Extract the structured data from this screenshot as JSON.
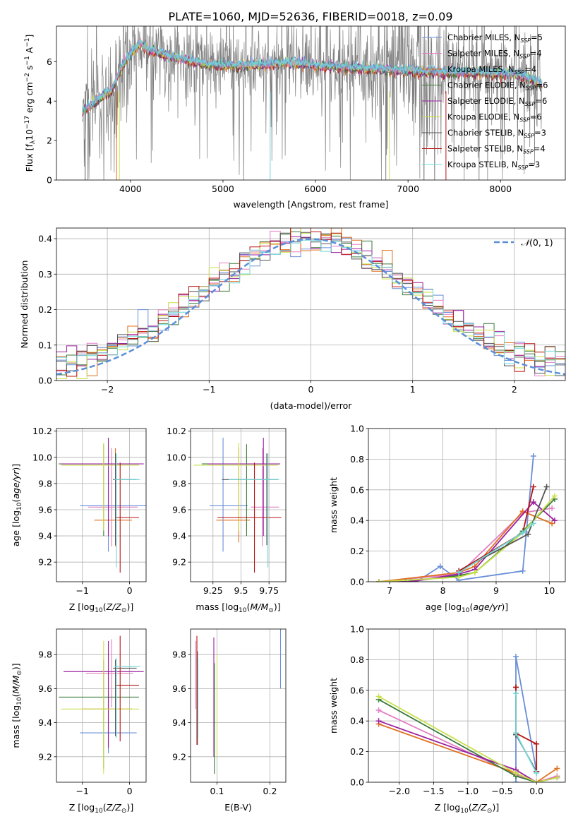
{
  "figure_title": "PLATE=1060, MJD=52636, FIBERID=0018, z=0.09",
  "colors": {
    "chabrier_miles": "#6a8fd8",
    "salpeter_miles": "#e37fc4",
    "kroupa_miles": "#e07020",
    "chabrier_elodie": "#3a7a3a",
    "salpeter_elodie": "#9a1fa0",
    "kroupa_elodie": "#c8e04a",
    "chabrier_stelib": "#555555",
    "salpeter_stelib": "#b81414",
    "kroupa_stelib": "#6fd8d8",
    "data_gray": "#808080",
    "gaussian": "#5b8fd8"
  },
  "chart_data": [
    {
      "id": "spectrum",
      "type": "line",
      "xlabel": "wavelength [Angstrom, rest frame]",
      "ylabel_main": "Flux [f",
      "ylabel_sub": "λ",
      "ylabel_rest": "10",
      "ylabel_exp": "−17",
      "ylabel_units": " erg cm",
      "ylabel_exp2": "−2",
      "ylabel_s": " s",
      "ylabel_exp3": "−1",
      "ylabel_a": " A",
      "ylabel_exp4": "−1",
      "ylabel_end": "]",
      "xlim": [
        3200,
        8700
      ],
      "ylim": [
        0,
        7.8
      ],
      "xticks": [
        4000,
        5000,
        6000,
        7000,
        8000
      ],
      "yticks": [
        0,
        2,
        4,
        6
      ],
      "legend": [
        {
          "prefix": "Chabrier MILES, N",
          "sub": "SSP",
          "suffix": "=5",
          "color": "chabrier_miles"
        },
        {
          "prefix": "Salpeter MILES, N",
          "sub": "SSP",
          "suffix": "=4",
          "color": "salpeter_miles"
        },
        {
          "prefix": "Kroupa MILES, N",
          "sub": "SSP",
          "suffix": "=4",
          "color": "kroupa_miles"
        },
        {
          "prefix": "Chabrier ELODIE, N",
          "sub": "SSP",
          "suffix": "=6",
          "color": "chabrier_elodie"
        },
        {
          "prefix": "Salpeter ELODIE, N",
          "sub": "SSP",
          "suffix": "=6",
          "color": "salpeter_elodie"
        },
        {
          "prefix": "Kroupa ELODIE, N",
          "sub": "SSP",
          "suffix": "=6",
          "color": "kroupa_elodie"
        },
        {
          "prefix": "Chabrier STELIB, N",
          "sub": "SSP",
          "suffix": "=3",
          "color": "chabrier_stelib"
        },
        {
          "prefix": "Salpeter STELIB, N",
          "sub": "SSP",
          "suffix": "=4",
          "color": "salpeter_stelib"
        },
        {
          "prefix": "Kroupa STELIB, N",
          "sub": "SSP",
          "suffix": "=3",
          "color": "kroupa_stelib"
        }
      ],
      "continuum": [
        [
          3480,
          3.5
        ],
        [
          3600,
          3.9
        ],
        [
          3800,
          4.6
        ],
        [
          3900,
          5.7
        ],
        [
          4000,
          6.4
        ],
        [
          4100,
          6.9
        ],
        [
          4200,
          6.6
        ],
        [
          4400,
          6.3
        ],
        [
          4600,
          6.1
        ],
        [
          4800,
          5.9
        ],
        [
          5000,
          5.8
        ],
        [
          5200,
          5.8
        ],
        [
          5400,
          5.85
        ],
        [
          5600,
          5.9
        ],
        [
          5800,
          5.95
        ],
        [
          6000,
          5.8
        ],
        [
          6200,
          5.75
        ],
        [
          6400,
          5.7
        ],
        [
          6600,
          5.65
        ],
        [
          6800,
          5.6
        ],
        [
          7000,
          5.55
        ],
        [
          7200,
          5.5
        ],
        [
          7400,
          5.45
        ],
        [
          7600,
          5.45
        ],
        [
          7800,
          5.45
        ],
        [
          8000,
          5.4
        ],
        [
          8200,
          5.35
        ],
        [
          8400,
          5.0
        ],
        [
          8450,
          4.8
        ]
      ]
    },
    {
      "id": "histogram",
      "type": "bar",
      "xlabel": "(data-model)/error",
      "ylabel": "Normed distribution",
      "xlim": [
        -2.5,
        2.5
      ],
      "ylim": [
        0,
        0.43
      ],
      "xticks": [
        -2,
        -1,
        0,
        1,
        2
      ],
      "yticks": [
        0.0,
        0.1,
        0.2,
        0.3,
        0.4
      ],
      "legend_label": "N(0, 1)",
      "legend_script": "𝒩",
      "legend_rest": "(0, 1)",
      "bin_width": 0.1
    },
    {
      "id": "age_vs_Z",
      "type": "scatter",
      "xlabel": "Z [log10(Z/Z⊙)]",
      "ylabel": "age [log10(age/yr)]",
      "xlim": [
        -1.55,
        0.35
      ],
      "ylim": [
        9.05,
        10.22
      ],
      "xticks": [
        -1,
        0
      ],
      "yticks": [
        9.2,
        9.4,
        9.6,
        9.8,
        10.0,
        10.2
      ],
      "points": [
        {
          "color": "chabrier_miles",
          "x": -0.45,
          "xerr": [
            0.6,
            0.8
          ],
          "y": 9.63,
          "yerr": [
            0.35,
            0.52
          ]
        },
        {
          "color": "salpeter_miles",
          "x": -0.38,
          "xerr": [
            0.5,
            0.55
          ],
          "y": 9.62,
          "yerr": [
            0.3,
            0.45
          ]
        },
        {
          "color": "kroupa_miles",
          "x": -0.3,
          "xerr": [
            0.45,
            0.35
          ],
          "y": 9.52,
          "yerr": [
            0.2,
            0.55
          ]
        },
        {
          "color": "chabrier_elodie",
          "x": -0.55,
          "xerr": [
            0.95,
            0.75
          ],
          "y": 9.95,
          "yerr": [
            0.55,
            0.15
          ]
        },
        {
          "color": "salpeter_elodie",
          "x": -0.45,
          "xerr": [
            1.0,
            0.75
          ],
          "y": 9.95,
          "yerr": [
            0.55,
            0.2
          ]
        },
        {
          "color": "kroupa_elodie",
          "x": -0.55,
          "xerr": [
            0.9,
            0.75
          ],
          "y": 9.94,
          "yerr": [
            0.5,
            0.17
          ]
        },
        {
          "color": "chabrier_stelib",
          "x": -0.3,
          "xerr": [
            0.05,
            0.45
          ],
          "y": 9.83,
          "yerr": [
            0.5,
            0.2
          ]
        },
        {
          "color": "salpeter_stelib",
          "x": -0.2,
          "xerr": [
            0.1,
            0.4
          ],
          "y": 9.54,
          "yerr": [
            0.42,
            0.42
          ]
        },
        {
          "color": "kroupa_stelib",
          "x": -0.28,
          "xerr": [
            0.04,
            0.5
          ],
          "y": 9.83,
          "yerr": [
            0.67,
            0.2
          ]
        }
      ]
    },
    {
      "id": "age_vs_mass",
      "type": "scatter",
      "xlabel": "mass [log10(M/M⊙)]",
      "ylabel": "",
      "xlim": [
        9.05,
        9.9
      ],
      "ylim": [
        9.05,
        10.22
      ],
      "xticks": [
        9.25,
        9.5,
        9.75
      ],
      "ytick_labels": [
        9.2,
        9.4,
        9.6,
        9.8,
        10.0,
        10.2
      ],
      "points": [
        {
          "color": "chabrier_miles",
          "x": 9.34,
          "xerr": [
            0.12,
            0.22
          ],
          "y": 9.63,
          "yerr": [
            0.35,
            0.52
          ]
        },
        {
          "color": "salpeter_miles",
          "x": 9.69,
          "xerr": [
            0.1,
            0.15
          ],
          "y": 9.62,
          "yerr": [
            0.3,
            0.45
          ]
        },
        {
          "color": "kroupa_miles",
          "x": 9.48,
          "xerr": [
            0.2,
            0.1
          ],
          "y": 9.52,
          "yerr": [
            0.17,
            0.55
          ]
        },
        {
          "color": "chabrier_elodie",
          "x": 9.55,
          "xerr": [
            0.4,
            0.3
          ],
          "y": 9.95,
          "yerr": [
            0.55,
            0.15
          ]
        },
        {
          "color": "salpeter_elodie",
          "x": 9.7,
          "xerr": [
            0.5,
            0.15
          ],
          "y": 9.95,
          "yerr": [
            0.55,
            0.2
          ]
        },
        {
          "color": "kroupa_elodie",
          "x": 9.48,
          "xerr": [
            0.4,
            0.35
          ],
          "y": 9.94,
          "yerr": [
            0.5,
            0.17
          ]
        },
        {
          "color": "chabrier_stelib",
          "x": 9.73,
          "xerr": [
            0.4,
            0.1
          ],
          "y": 9.83,
          "yerr": [
            0.5,
            0.2
          ]
        },
        {
          "color": "salpeter_stelib",
          "x": 9.62,
          "xerr": [
            0.33,
            0.24
          ],
          "y": 9.54,
          "yerr": [
            0.42,
            0.42
          ]
        },
        {
          "color": "kroupa_stelib",
          "x": 9.74,
          "xerr": [
            0.35,
            0.1
          ],
          "y": 9.83,
          "yerr": [
            0.67,
            0.2
          ]
        }
      ]
    },
    {
      "id": "weight_vs_age",
      "type": "line",
      "xlabel": "age [log10(age/yr)]",
      "ylabel": "mass weight",
      "xlim": [
        6.6,
        10.3
      ],
      "ylim": [
        0,
        1.0
      ],
      "xticks": [
        7,
        8,
        9,
        10
      ],
      "yticks": [
        0.0,
        0.2,
        0.4,
        0.6,
        0.8,
        1.0
      ],
      "series": [
        {
          "color": "chabrier_miles",
          "x": [
            6.8,
            7.5,
            7.95,
            8.3,
            9.5,
            9.7
          ],
          "y": [
            0.0,
            0.0,
            0.1,
            0.01,
            0.07,
            0.82
          ]
        },
        {
          "color": "salpeter_miles",
          "x": [
            6.8,
            8.3,
            9.5,
            10.05
          ],
          "y": [
            0.0,
            0.05,
            0.45,
            0.48
          ]
        },
        {
          "color": "kroupa_miles",
          "x": [
            6.8,
            8.3,
            8.6,
            9.5,
            10.05
          ],
          "y": [
            0.0,
            0.06,
            0.1,
            0.46,
            0.38
          ]
        },
        {
          "color": "chabrier_elodie",
          "x": [
            6.8,
            7.3,
            8.3,
            8.6,
            9.5,
            10.1
          ],
          "y": [
            0.0,
            0.0,
            0.04,
            0.06,
            0.33,
            0.54
          ]
        },
        {
          "color": "salpeter_elodie",
          "x": [
            6.8,
            7.4,
            8.3,
            8.6,
            9.7,
            10.1
          ],
          "y": [
            0.0,
            0.0,
            0.05,
            0.08,
            0.52,
            0.4
          ]
        },
        {
          "color": "kroupa_elodie",
          "x": [
            6.8,
            8.3,
            8.6,
            9.5,
            10.1
          ],
          "y": [
            0.0,
            0.03,
            0.06,
            0.32,
            0.56
          ]
        },
        {
          "color": "chabrier_stelib",
          "x": [
            8.3,
            9.6,
            9.95
          ],
          "y": [
            0.07,
            0.31,
            0.62
          ]
        },
        {
          "color": "salpeter_stelib",
          "x": [
            8.3,
            9.5,
            9.7
          ],
          "y": [
            0.07,
            0.32,
            0.62
          ]
        },
        {
          "color": "kroupa_stelib",
          "x": [
            8.3,
            9.5,
            9.7
          ],
          "y": [
            0.06,
            0.32,
            0.38
          ]
        }
      ]
    },
    {
      "id": "mass_vs_Z",
      "type": "scatter",
      "xlabel": "Z [log10(Z/Z⊙)]",
      "ylabel": "mass [log10(M/M⊙)]",
      "xlim": [
        -1.55,
        0.35
      ],
      "ylim": [
        9.05,
        9.95
      ],
      "xticks": [
        -1,
        0
      ],
      "yticks": [
        9.2,
        9.4,
        9.6,
        9.8
      ],
      "points": [
        {
          "color": "chabrier_miles",
          "x": -0.45,
          "xerr": [
            0.6,
            0.6
          ],
          "y": 9.34,
          "yerr": [
            0.12,
            0.24
          ]
        },
        {
          "color": "salpeter_miles",
          "x": -0.38,
          "xerr": [
            0.55,
            0.45
          ],
          "y": 9.69,
          "yerr": [
            0.2,
            0.2
          ]
        },
        {
          "color": "kroupa_miles",
          "x": -0.45,
          "xerr": [
            0.55,
            0.5
          ],
          "y": 9.48,
          "yerr": [
            0.2,
            0.35
          ]
        },
        {
          "color": "chabrier_elodie",
          "x": -0.55,
          "xerr": [
            0.95,
            0.75
          ],
          "y": 9.55,
          "yerr": [
            0.42,
            0.22
          ]
        },
        {
          "color": "salpeter_elodie",
          "x": -0.45,
          "xerr": [
            0.95,
            0.75
          ],
          "y": 9.7,
          "yerr": [
            0.45,
            0.18
          ]
        },
        {
          "color": "kroupa_elodie",
          "x": -0.55,
          "xerr": [
            0.9,
            0.75
          ],
          "y": 9.48,
          "yerr": [
            0.38,
            0.4
          ]
        },
        {
          "color": "chabrier_stelib",
          "x": -0.3,
          "xerr": [
            0.05,
            0.45
          ],
          "y": 9.72,
          "yerr": [
            0.4,
            0.05
          ]
        },
        {
          "color": "salpeter_stelib",
          "x": -0.2,
          "xerr": [
            0.1,
            0.4
          ],
          "y": 9.62,
          "yerr": [
            0.33,
            0.29
          ]
        },
        {
          "color": "kroupa_stelib",
          "x": -0.28,
          "xerr": [
            0.04,
            0.5
          ],
          "y": 9.73,
          "yerr": [
            0.42,
            0.05
          ]
        }
      ]
    },
    {
      "id": "mass_vs_ebv",
      "type": "scatter",
      "xlabel": "E(B-V)",
      "ylabel": "",
      "xlim": [
        0.05,
        0.23
      ],
      "ylim": [
        9.05,
        9.95
      ],
      "xticks": [
        0.1,
        0.2
      ],
      "ytick_labels": [
        9.2,
        9.4,
        9.6,
        9.8
      ],
      "points": [
        {
          "color": "chabrier_miles",
          "x": 0.22,
          "yerr": [
            0.08,
            0.53
          ],
          "y": 9.68
        },
        {
          "color": "salpeter_miles",
          "x": 0.06,
          "yerr": [
            0.2,
            0.2
          ],
          "y": 9.68
        },
        {
          "color": "kroupa_elodie",
          "x": 0.1,
          "yerr": [
            0.3,
            0.3
          ],
          "y": 9.5
        },
        {
          "color": "salpeter_elodie",
          "x": 0.094,
          "yerr": [
            0.5,
            0.2
          ],
          "y": 9.7
        },
        {
          "color": "chabrier_stelib",
          "x": 0.063,
          "yerr": [
            0.45,
            0.1
          ],
          "y": 9.72
        },
        {
          "color": "salpeter_stelib",
          "x": 0.062,
          "yerr": [
            0.35,
            0.29
          ],
          "y": 9.62
        },
        {
          "color": "kroupa_stelib",
          "x": 0.064,
          "yerr": [
            0.42,
            0.05
          ],
          "y": 9.73
        },
        {
          "color": "chabrier_elodie",
          "x": 0.095,
          "yerr": [
            0.45,
            0.2
          ],
          "y": 9.55
        }
      ]
    },
    {
      "id": "weight_vs_Z",
      "type": "line",
      "xlabel": "Z [log10(Z/Z⊙)]",
      "ylabel": "mass weight",
      "xlim": [
        -2.45,
        0.42
      ],
      "ylim": [
        0,
        1.0
      ],
      "xticks": [
        -2.0,
        -1.5,
        -1.0,
        -0.5,
        0.0
      ],
      "xtick_labels": [
        "−2.0",
        "−1.5",
        "−1.0",
        "−0.5",
        "0.0"
      ],
      "yticks": [
        0.0,
        0.2,
        0.4,
        0.6,
        0.8,
        1.0
      ],
      "series": [
        {
          "color": "chabrier_miles",
          "x": [
            -0.3,
            -0.3,
            0.0
          ],
          "y": [
            0.0,
            0.82,
            0.07
          ]
        },
        {
          "color": "salpeter_miles",
          "x": [
            -2.3,
            -0.3,
            0.0,
            0.3
          ],
          "y": [
            0.47,
            0.05,
            0.0,
            0.04
          ]
        },
        {
          "color": "kroupa_miles",
          "x": [
            -2.3,
            -0.3,
            0.0,
            0.3
          ],
          "y": [
            0.38,
            0.06,
            0.0,
            0.09
          ]
        },
        {
          "color": "chabrier_elodie",
          "x": [
            -2.3,
            -0.3,
            0.0,
            0.3
          ],
          "y": [
            0.54,
            0.04,
            0.0,
            0.03
          ]
        },
        {
          "color": "salpeter_elodie",
          "x": [
            -2.3,
            -0.3,
            0.0,
            0.3
          ],
          "y": [
            0.4,
            0.08,
            0.0,
            0.03
          ]
        },
        {
          "color": "kroupa_elodie",
          "x": [
            -2.3,
            -0.3,
            0.0,
            0.3
          ],
          "y": [
            0.56,
            0.06,
            0.0,
            0.03
          ]
        },
        {
          "color": "chabrier_stelib",
          "x": [
            -0.3,
            -0.3,
            0.0
          ],
          "y": [
            0.62,
            0.31,
            0.07
          ]
        },
        {
          "color": "salpeter_stelib",
          "x": [
            -0.3,
            -0.3,
            0.0,
            0.0
          ],
          "y": [
            0.62,
            0.32,
            0.25,
            0.07
          ]
        },
        {
          "color": "kroupa_stelib",
          "x": [
            -0.3,
            -0.3,
            0.0
          ],
          "y": [
            0.58,
            0.32,
            0.06
          ]
        }
      ]
    }
  ]
}
